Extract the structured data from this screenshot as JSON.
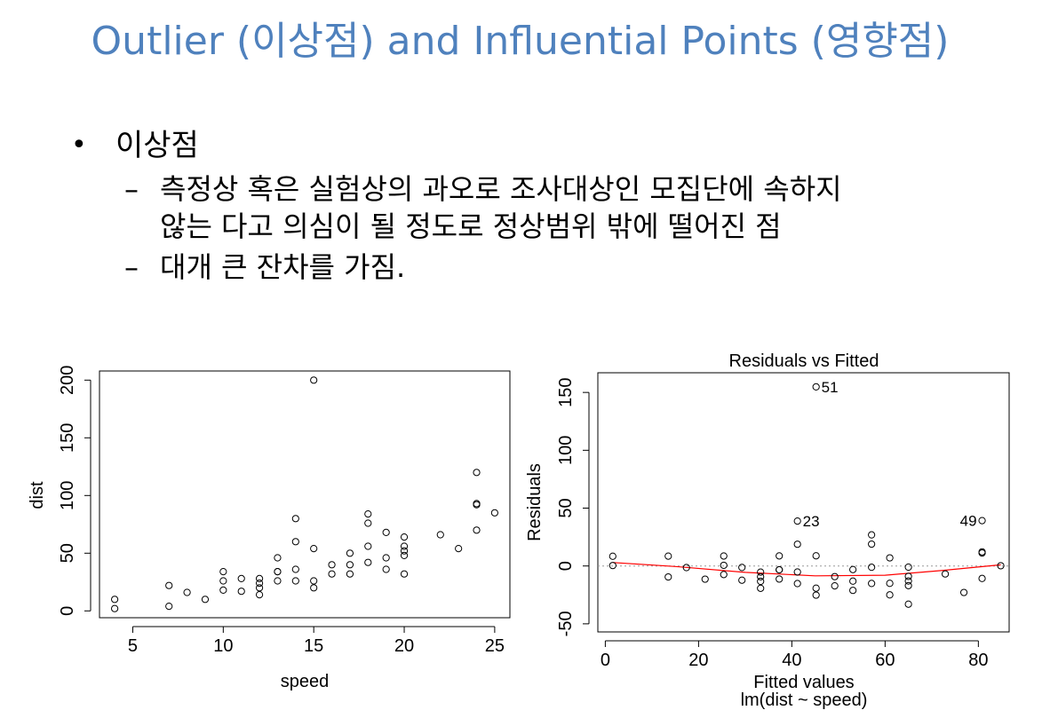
{
  "slide": {
    "title": "Outlier (이상점) and Influential Points (영향점)",
    "bullet": {
      "label": "이상점",
      "marker": "•"
    },
    "subpoints": [
      {
        "marker": "–",
        "line1": "측정상 혹은 실험상의 과오로 조사대상인 모집단에 속하지",
        "line2": "않는 다고 의심이 될 정도로 정상범위 밖에 떨어진 점"
      },
      {
        "marker": "–",
        "line1": "대개 큰 잔차를 가짐.",
        "line2": ""
      }
    ]
  },
  "chart_data": [
    {
      "type": "scatter",
      "title": "",
      "xlabel": "speed",
      "ylabel": "dist",
      "xlim": [
        3.16,
        25.84
      ],
      "ylim": [
        -5.92,
        207.92
      ],
      "xticks": [
        5,
        10,
        15,
        20,
        25
      ],
      "yticks": [
        0,
        50,
        100,
        150,
        200
      ],
      "points": [
        [
          4,
          2
        ],
        [
          4,
          10
        ],
        [
          7,
          4
        ],
        [
          7,
          22
        ],
        [
          8,
          16
        ],
        [
          9,
          10
        ],
        [
          10,
          18
        ],
        [
          10,
          26
        ],
        [
          10,
          34
        ],
        [
          11,
          17
        ],
        [
          11,
          28
        ],
        [
          12,
          14
        ],
        [
          12,
          20
        ],
        [
          12,
          24
        ],
        [
          12,
          28
        ],
        [
          13,
          26
        ],
        [
          13,
          34
        ],
        [
          13,
          34
        ],
        [
          13,
          46
        ],
        [
          14,
          26
        ],
        [
          14,
          36
        ],
        [
          14,
          60
        ],
        [
          14,
          80
        ],
        [
          15,
          20
        ],
        [
          15,
          26
        ],
        [
          15,
          54
        ],
        [
          16,
          32
        ],
        [
          16,
          40
        ],
        [
          17,
          32
        ],
        [
          17,
          40
        ],
        [
          17,
          50
        ],
        [
          18,
          42
        ],
        [
          18,
          56
        ],
        [
          18,
          76
        ],
        [
          18,
          84
        ],
        [
          19,
          36
        ],
        [
          19,
          46
        ],
        [
          19,
          68
        ],
        [
          20,
          32
        ],
        [
          20,
          48
        ],
        [
          20,
          52
        ],
        [
          20,
          56
        ],
        [
          20,
          64
        ],
        [
          22,
          66
        ],
        [
          23,
          54
        ],
        [
          24,
          70
        ],
        [
          24,
          92
        ],
        [
          24,
          93
        ],
        [
          24,
          120
        ],
        [
          25,
          85
        ],
        [
          15,
          200
        ]
      ]
    },
    {
      "type": "scatter",
      "title": "Residuals vs Fitted",
      "xlabel": "Fitted values",
      "subtitle": "lm(dist ~ speed)",
      "ylabel": "Residuals",
      "xlim": [
        -1.6,
        86.6
      ],
      "ylim": [
        -57,
        167
      ],
      "xticks": [
        0,
        20,
        40,
        60,
        80
      ],
      "yticks": [
        -50,
        0,
        50,
        100,
        150
      ],
      "reference_line_y": 0,
      "points": [
        [
          1.6,
          0.4
        ],
        [
          1.6,
          8.4
        ],
        [
          13.5,
          -9.5
        ],
        [
          13.5,
          8.5
        ],
        [
          17.4,
          -1.4
        ],
        [
          21.4,
          -11.4
        ],
        [
          25.4,
          -7.4
        ],
        [
          25.4,
          0.6
        ],
        [
          25.4,
          8.6
        ],
        [
          29.3,
          -12.3
        ],
        [
          29.3,
          -1.3
        ],
        [
          33.3,
          -19.3
        ],
        [
          33.3,
          -13.3
        ],
        [
          33.3,
          -9.3
        ],
        [
          33.3,
          -5.3
        ],
        [
          37.3,
          -11.3
        ],
        [
          37.3,
          -3.3
        ],
        [
          37.3,
          -3.3
        ],
        [
          37.3,
          8.7
        ],
        [
          41.2,
          -15.2
        ],
        [
          41.2,
          -5.2
        ],
        [
          41.2,
          18.8
        ],
        [
          41.2,
          38.8
        ],
        [
          45.2,
          -25.2
        ],
        [
          45.2,
          -19.2
        ],
        [
          45.2,
          8.8
        ],
        [
          49.2,
          -17.2
        ],
        [
          49.2,
          -9.2
        ],
        [
          53.1,
          -21.1
        ],
        [
          53.1,
          -13.1
        ],
        [
          53.1,
          -3.1
        ],
        [
          57.1,
          -15.1
        ],
        [
          57.1,
          -1.1
        ],
        [
          57.1,
          18.9
        ],
        [
          57.1,
          26.9
        ],
        [
          61.0,
          -25.0
        ],
        [
          61.0,
          -15.0
        ],
        [
          61.0,
          7.0
        ],
        [
          65.0,
          -33.0
        ],
        [
          65.0,
          -17.0
        ],
        [
          65.0,
          -13.0
        ],
        [
          65.0,
          -9.0
        ],
        [
          65.0,
          -1.0
        ],
        [
          72.9,
          -6.9
        ],
        [
          76.9,
          -22.9
        ],
        [
          80.8,
          -10.8
        ],
        [
          80.8,
          11.2
        ],
        [
          80.8,
          12.2
        ],
        [
          80.8,
          39.2
        ],
        [
          84.8,
          0.2
        ],
        [
          45.2,
          154.8
        ]
      ],
      "smoother": [
        [
          1.6,
          3.0
        ],
        [
          15,
          -0.5
        ],
        [
          30,
          -5.5
        ],
        [
          45,
          -8.5
        ],
        [
          60,
          -8.0
        ],
        [
          72,
          -4.0
        ],
        [
          84.8,
          1.0
        ]
      ],
      "annotations": [
        {
          "label": "51",
          "x": 45.2,
          "y": 154.8,
          "side": "right"
        },
        {
          "label": "23",
          "x": 41.2,
          "y": 38.8,
          "side": "right"
        },
        {
          "label": "49",
          "x": 80.8,
          "y": 39.2,
          "side": "left"
        }
      ],
      "colors": {
        "smoother": "#ff0000",
        "reference_line": "#999999"
      }
    }
  ]
}
